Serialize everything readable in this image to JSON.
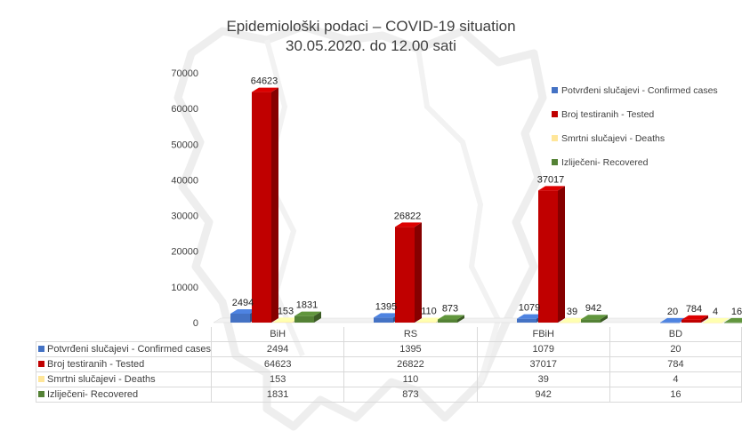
{
  "chart_data": {
    "type": "bar",
    "title": "Epidemiološki podaci – COVID-19 situation",
    "subtitle": "30.05.2020. do 12.00 sati",
    "categories": [
      "BiH",
      "RS",
      "FBiH",
      "BD"
    ],
    "series": [
      {
        "name": "Potvrđeni slučajevi - Confirmed cases",
        "color": "#4472c4",
        "values": [
          2494,
          1395,
          1079,
          20
        ]
      },
      {
        "name": "Broj testiranih - Tested",
        "color": "#c00000",
        "values": [
          64623,
          26822,
          37017,
          784
        ]
      },
      {
        "name": "Smrtni slučajevi - Deaths",
        "color": "#ffe699",
        "values": [
          153,
          110,
          39,
          4
        ]
      },
      {
        "name": "Izliječeni- Recovered",
        "color": "#548235",
        "values": [
          1831,
          873,
          942,
          16
        ]
      }
    ],
    "ylim": [
      0,
      70000
    ],
    "yticks": [
      "0",
      "10000",
      "20000",
      "30000",
      "40000",
      "50000",
      "60000",
      "70000"
    ],
    "legend_position": "right",
    "grid": false,
    "style": "3d-clustered-column-with-data-table"
  },
  "data_labels": [
    [
      "2494",
      "64623",
      "153",
      "1831"
    ],
    [
      "1395",
      "26822",
      "110",
      "873"
    ],
    [
      "1079",
      "37017",
      "39",
      "942"
    ],
    [
      "20",
      "784",
      "4",
      "16"
    ]
  ]
}
